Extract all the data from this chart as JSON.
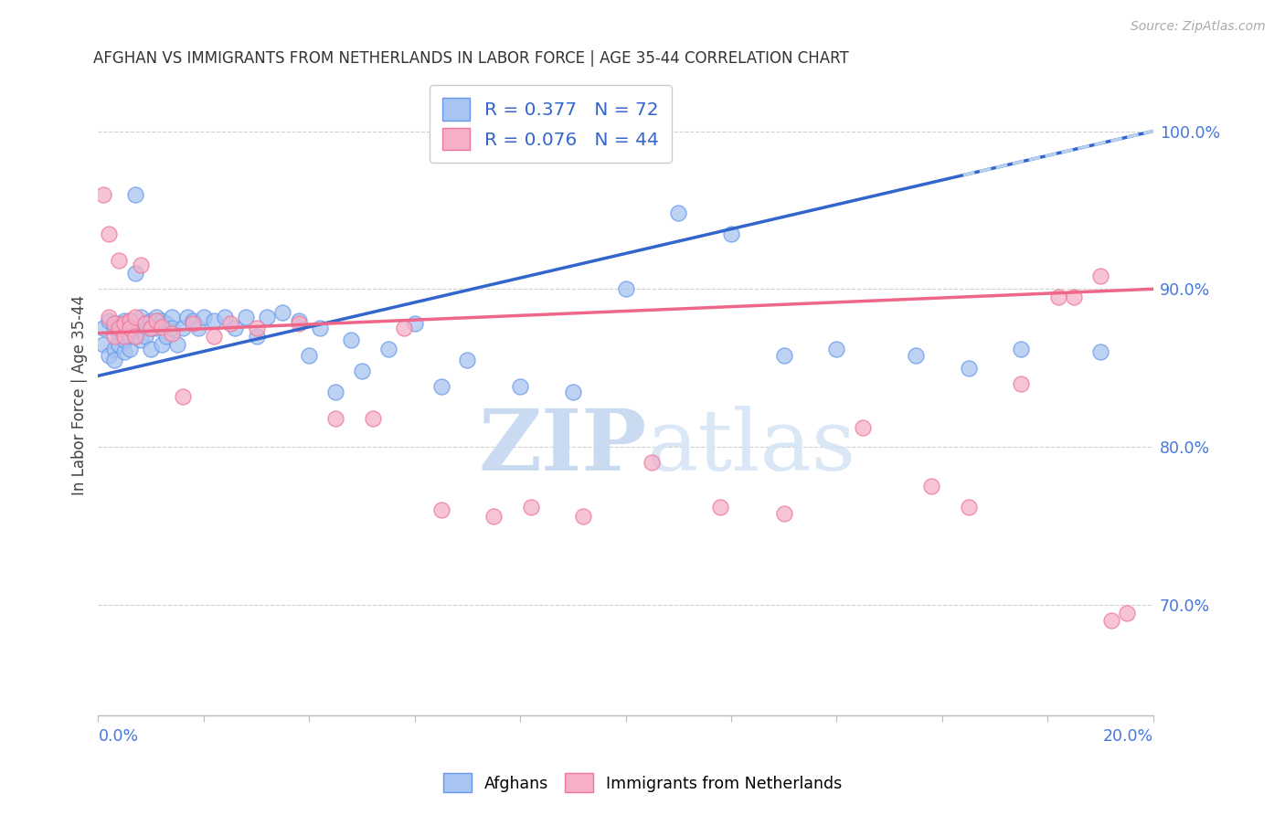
{
  "title": "AFGHAN VS IMMIGRANTS FROM NETHERLANDS IN LABOR FORCE | AGE 35-44 CORRELATION CHART",
  "source": "Source: ZipAtlas.com",
  "ylabel": "In Labor Force | Age 35-44",
  "right_yticks": [
    0.7,
    0.8,
    0.9,
    1.0
  ],
  "right_yticklabels": [
    "70.0%",
    "80.0%",
    "90.0%",
    "100.0%"
  ],
  "xmin": 0.0,
  "xmax": 0.2,
  "ymin": 0.63,
  "ymax": 1.035,
  "blue_face": "#A8C4F0",
  "blue_edge": "#6699EE",
  "pink_face": "#F5B0C8",
  "pink_edge": "#EE7799",
  "trendline_blue": "#3366CC",
  "trendline_pink": "#EE6688",
  "trendline_dashed": "#B8D0F0",
  "r_blue": 0.377,
  "n_blue": 72,
  "r_pink": 0.076,
  "n_pink": 44,
  "watermark_color": "#D8E8FA",
  "blue_trend_x0": 0.0,
  "blue_trend_y0": 0.845,
  "blue_trend_x1": 0.2,
  "blue_trend_y1": 1.0,
  "pink_trend_x0": 0.0,
  "pink_trend_y0": 0.872,
  "pink_trend_x1": 0.2,
  "pink_trend_y1": 0.9,
  "afghans_x": [
    0.001,
    0.001,
    0.002,
    0.002,
    0.003,
    0.003,
    0.003,
    0.004,
    0.004,
    0.004,
    0.005,
    0.005,
    0.005,
    0.005,
    0.006,
    0.006,
    0.006,
    0.006,
    0.007,
    0.007,
    0.007,
    0.007,
    0.008,
    0.008,
    0.008,
    0.009,
    0.009,
    0.01,
    0.01,
    0.01,
    0.011,
    0.011,
    0.012,
    0.012,
    0.013,
    0.013,
    0.014,
    0.014,
    0.015,
    0.016,
    0.017,
    0.018,
    0.019,
    0.02,
    0.022,
    0.024,
    0.026,
    0.028,
    0.03,
    0.032,
    0.035,
    0.038,
    0.04,
    0.042,
    0.045,
    0.048,
    0.05,
    0.055,
    0.06,
    0.065,
    0.07,
    0.08,
    0.09,
    0.1,
    0.11,
    0.12,
    0.13,
    0.14,
    0.155,
    0.165,
    0.175,
    0.19
  ],
  "afghans_y": [
    0.875,
    0.865,
    0.88,
    0.858,
    0.875,
    0.862,
    0.855,
    0.87,
    0.878,
    0.865,
    0.872,
    0.86,
    0.88,
    0.868,
    0.875,
    0.862,
    0.87,
    0.88,
    0.96,
    0.91,
    0.875,
    0.87,
    0.882,
    0.868,
    0.875,
    0.878,
    0.87,
    0.88,
    0.875,
    0.862,
    0.882,
    0.875,
    0.88,
    0.865,
    0.878,
    0.87,
    0.882,
    0.875,
    0.865,
    0.875,
    0.882,
    0.88,
    0.875,
    0.882,
    0.88,
    0.882,
    0.875,
    0.882,
    0.87,
    0.882,
    0.885,
    0.88,
    0.858,
    0.875,
    0.835,
    0.868,
    0.848,
    0.862,
    0.878,
    0.838,
    0.855,
    0.838,
    0.835,
    0.9,
    0.948,
    0.935,
    0.858,
    0.862,
    0.858,
    0.85,
    0.862,
    0.86
  ],
  "netherlands_x": [
    0.001,
    0.002,
    0.002,
    0.003,
    0.003,
    0.004,
    0.004,
    0.005,
    0.005,
    0.006,
    0.006,
    0.007,
    0.007,
    0.008,
    0.009,
    0.01,
    0.011,
    0.012,
    0.014,
    0.016,
    0.018,
    0.022,
    0.025,
    0.03,
    0.038,
    0.045,
    0.052,
    0.058,
    0.065,
    0.075,
    0.082,
    0.092,
    0.105,
    0.118,
    0.13,
    0.145,
    0.158,
    0.165,
    0.175,
    0.182,
    0.185,
    0.19,
    0.192,
    0.195
  ],
  "netherlands_y": [
    0.96,
    0.935,
    0.882,
    0.878,
    0.87,
    0.918,
    0.875,
    0.87,
    0.878,
    0.88,
    0.875,
    0.882,
    0.87,
    0.915,
    0.878,
    0.875,
    0.88,
    0.876,
    0.872,
    0.832,
    0.878,
    0.87,
    0.878,
    0.875,
    0.878,
    0.818,
    0.818,
    0.875,
    0.76,
    0.756,
    0.762,
    0.756,
    0.79,
    0.762,
    0.758,
    0.812,
    0.775,
    0.762,
    0.84,
    0.895,
    0.895,
    0.908,
    0.69,
    0.695
  ]
}
